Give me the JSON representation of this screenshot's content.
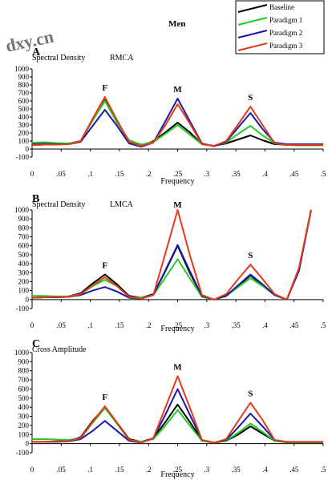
{
  "figure": {
    "title": "Men",
    "watermark": "dxy.cn",
    "legend": [
      {
        "label": "Baseline",
        "color": "#000000"
      },
      {
        "label": "Paradigm 1",
        "color": "#22cc22"
      },
      {
        "label": "Paradigm 2",
        "color": "#1a1aa8"
      },
      {
        "label": "Paradigm 3",
        "color": "#e23a1a"
      }
    ]
  },
  "chart_data": [
    {
      "panel": "A",
      "type": "line",
      "ylabel": "Spectral Density",
      "sublabel": "RMCA",
      "xlabel": "Frequency",
      "ylim": [
        -100,
        1000
      ],
      "xlim": [
        0,
        0.5
      ],
      "yticks": [
        "-100",
        "0",
        "100",
        "200",
        "300",
        "400",
        "500",
        "600",
        "700",
        "800",
        "900",
        "1000"
      ],
      "xticks": [
        "0",
        ".05",
        ".1",
        ".15",
        ".2",
        ".25",
        ".3",
        ".35",
        ".4",
        ".45",
        ".5"
      ],
      "peaks": [
        {
          "label": "F",
          "x": 0.125,
          "y": 650
        },
        {
          "label": "M",
          "x": 0.25,
          "y": 630
        },
        {
          "label": "S",
          "x": 0.375,
          "y": 530
        }
      ],
      "x": [
        0,
        0.0208,
        0.0417,
        0.0625,
        0.0833,
        0.1042,
        0.125,
        0.1458,
        0.1667,
        0.1875,
        0.2083,
        0.2292,
        0.25,
        0.2708,
        0.2917,
        0.3125,
        0.3333,
        0.3542,
        0.375,
        0.3958,
        0.4167,
        0.4375,
        0.4583,
        0.4792,
        0.5
      ],
      "series": [
        {
          "name": "Baseline",
          "values": [
            50,
            55,
            60,
            65,
            100,
            360,
            610,
            350,
            90,
            40,
            100,
            210,
            330,
            210,
            60,
            40,
            70,
            120,
            170,
            110,
            60,
            55,
            55,
            55,
            50
          ]
        },
        {
          "name": "Paradigm 1",
          "values": [
            80,
            85,
            75,
            70,
            100,
            360,
            600,
            330,
            110,
            55,
            90,
            190,
            300,
            180,
            60,
            40,
            80,
            190,
            290,
            170,
            70,
            50,
            45,
            45,
            45
          ]
        },
        {
          "name": "Paradigm 2",
          "values": [
            60,
            65,
            60,
            60,
            90,
            290,
            490,
            290,
            70,
            30,
            80,
            350,
            630,
            350,
            70,
            35,
            90,
            270,
            450,
            250,
            80,
            60,
            60,
            60,
            60
          ]
        },
        {
          "name": "Paradigm 3",
          "values": [
            50,
            55,
            55,
            60,
            100,
            380,
            650,
            360,
            90,
            40,
            80,
            300,
            560,
            320,
            60,
            40,
            100,
            310,
            530,
            300,
            70,
            50,
            50,
            50,
            50
          ]
        }
      ]
    },
    {
      "panel": "B",
      "type": "line",
      "ylabel": "Spectral Density",
      "sublabel": "LMCA",
      "xlabel": "Frequency",
      "ylim": [
        -100,
        1000
      ],
      "xlim": [
        0,
        0.5
      ],
      "yticks": [
        "-100",
        "0",
        "100",
        "200",
        "300",
        "400",
        "500",
        "600",
        "700",
        "800",
        "900",
        "1000"
      ],
      "xticks": [
        "0",
        ".05",
        ".1",
        ".15",
        ".2",
        ".25",
        ".3",
        ".35",
        ".4",
        ".45",
        ".5"
      ],
      "peaks": [
        {
          "label": "F",
          "x": 0.125,
          "y": 280
        },
        {
          "label": "M",
          "x": 0.25,
          "y": 1000
        },
        {
          "label": "S",
          "x": 0.375,
          "y": 390
        }
      ],
      "x": [
        0,
        0.0208,
        0.0417,
        0.0625,
        0.0833,
        0.1042,
        0.125,
        0.1458,
        0.1667,
        0.1875,
        0.2083,
        0.2292,
        0.25,
        0.2708,
        0.2917,
        0.3125,
        0.3333,
        0.3542,
        0.375,
        0.3958,
        0.4167,
        0.4375,
        0.4583,
        0.4792
      ],
      "series": [
        {
          "name": "Baseline",
          "values": [
            20,
            25,
            30,
            35,
            70,
            180,
            280,
            170,
            40,
            20,
            60,
            320,
            600,
            300,
            40,
            0,
            40,
            150,
            270,
            160,
            50,
            0,
            320,
            1000
          ]
        },
        {
          "name": "Paradigm 1",
          "values": [
            40,
            40,
            35,
            35,
            60,
            150,
            220,
            150,
            30,
            20,
            50,
            250,
            450,
            240,
            30,
            0,
            40,
            140,
            240,
            150,
            50,
            0,
            330,
            1000
          ]
        },
        {
          "name": "Paradigm 2",
          "values": [
            20,
            25,
            25,
            30,
            50,
            100,
            140,
            90,
            20,
            10,
            50,
            330,
            610,
            320,
            40,
            0,
            40,
            160,
            280,
            170,
            50,
            0,
            320,
            1000
          ]
        },
        {
          "name": "Paradigm 3",
          "values": [
            20,
            25,
            30,
            30,
            60,
            160,
            250,
            150,
            30,
            10,
            50,
            520,
            1000,
            500,
            50,
            0,
            60,
            230,
            390,
            230,
            60,
            0,
            350,
            1000
          ]
        }
      ]
    },
    {
      "panel": "C",
      "type": "line",
      "ylabel": "Cross Amplitude",
      "sublabel": "",
      "xlabel": "Frequency",
      "ylim": [
        -100,
        1000
      ],
      "xlim": [
        0,
        0.5
      ],
      "yticks": [
        "-100",
        "0",
        "100",
        "200",
        "300",
        "400",
        "500",
        "600",
        "700",
        "800",
        "900",
        "1000"
      ],
      "xticks": [
        "0",
        ".05",
        ".1",
        ".15",
        ".2",
        ".25",
        ".3",
        ".35",
        ".4",
        ".45",
        ".5"
      ],
      "peaks": [
        {
          "label": "F",
          "x": 0.125,
          "y": 410
        },
        {
          "label": "M",
          "x": 0.25,
          "y": 740
        },
        {
          "label": "S",
          "x": 0.375,
          "y": 450
        }
      ],
      "x": [
        0,
        0.0208,
        0.0417,
        0.0625,
        0.0833,
        0.1042,
        0.125,
        0.1458,
        0.1667,
        0.1875,
        0.2083,
        0.2292,
        0.25,
        0.2708,
        0.2917,
        0.3125,
        0.3333,
        0.3542,
        0.375,
        0.3958,
        0.4167,
        0.4375,
        0.4583,
        0.4792,
        0.5
      ],
      "series": [
        {
          "name": "Baseline",
          "values": [
            20,
            20,
            25,
            30,
            70,
            250,
            400,
            230,
            50,
            20,
            60,
            240,
            430,
            240,
            40,
            10,
            30,
            100,
            190,
            110,
            30,
            15,
            15,
            15,
            15
          ]
        },
        {
          "name": "Paradigm 1",
          "values": [
            50,
            50,
            45,
            40,
            60,
            230,
            390,
            220,
            40,
            20,
            50,
            200,
            370,
            200,
            30,
            10,
            30,
            120,
            220,
            130,
            30,
            15,
            15,
            15,
            15
          ]
        },
        {
          "name": "Paradigm 2",
          "values": [
            20,
            20,
            20,
            25,
            50,
            140,
            250,
            140,
            30,
            10,
            60,
            320,
            600,
            320,
            40,
            10,
            40,
            180,
            330,
            190,
            40,
            20,
            20,
            20,
            20
          ]
        },
        {
          "name": "Paradigm 3",
          "values": [
            20,
            20,
            25,
            30,
            60,
            240,
            410,
            230,
            40,
            10,
            60,
            400,
            740,
            400,
            40,
            10,
            50,
            250,
            450,
            260,
            40,
            20,
            20,
            20,
            20
          ]
        }
      ]
    }
  ]
}
